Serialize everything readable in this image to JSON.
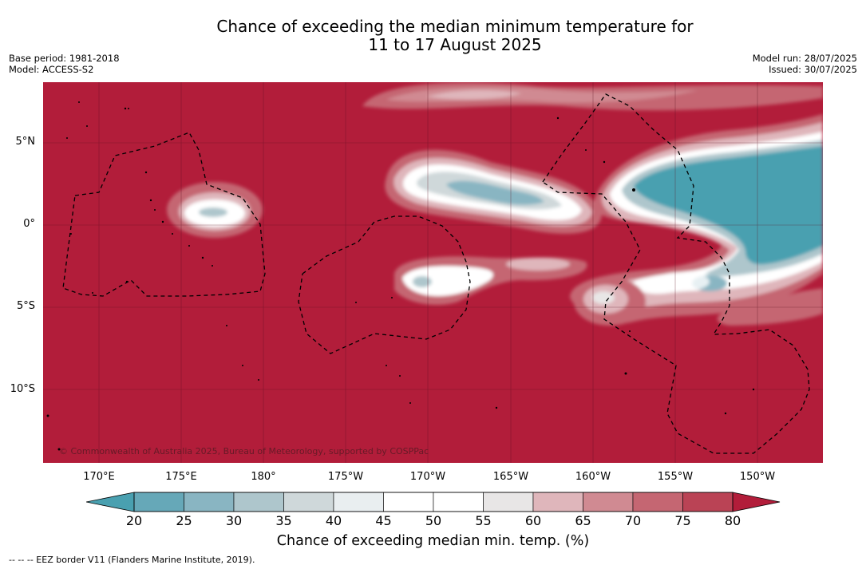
{
  "header": {
    "title_line1": "Chance of exceeding the median minimum temperature for",
    "title_line2": "11 to 17 August 2025",
    "base_period": "Base period: 1981-2018",
    "model": "Model: ACCESS-S2",
    "model_run": "Model run: 28/07/2025",
    "issued": "Issued: 30/07/2025"
  },
  "map": {
    "lat_labels": [
      "5°N",
      "0°",
      "5°S",
      "10°S"
    ],
    "lon_labels": [
      "170°E",
      "175°E",
      "180°",
      "175°W",
      "170°W",
      "165°W",
      "160°W",
      "155°W",
      "150°W"
    ],
    "credit": "© Commonwealth of Australia 2025, Bureau of Meteorology, supported by COSPPac",
    "background_color": "#b21d3a"
  },
  "colorbar": {
    "ticks": [
      "20",
      "25",
      "30",
      "35",
      "40",
      "45",
      "50",
      "55",
      "60",
      "65",
      "70",
      "75",
      "80"
    ],
    "colors": [
      "#66a8b8",
      "#89b5c2",
      "#aec6cc",
      "#cfd8da",
      "#e9eef0",
      "#ffffff",
      "#ffffff",
      "#e8e6e6",
      "#dfb6bb",
      "#d08a92",
      "#c56672",
      "#ba4355"
    ],
    "low_extend_color": "#49a0b0",
    "high_extend_color": "#b21d3a",
    "label": "Chance of exceeding median min. temp. (%)"
  },
  "footer": {
    "legend": "--  --  -- EEZ border V11 (Flanders Marine Institute, 2019)."
  }
}
